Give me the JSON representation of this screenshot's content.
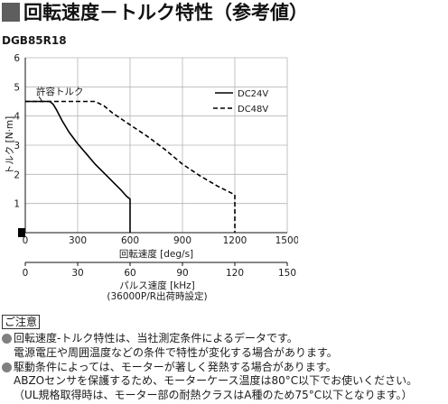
{
  "header": {
    "title": "回転速度－トルク特性（参考値）",
    "accent_color": "#5e5e5e"
  },
  "model": "DGB85R18",
  "chart_data": {
    "type": "line",
    "xlabel": "回転速度 [deg/s]",
    "ylabel": "トルク [N·m]",
    "xlim": [
      0,
      1500
    ],
    "ylim": [
      0,
      6
    ],
    "x_ticks": [
      "0",
      "300",
      "600",
      "900",
      "1200",
      "1500"
    ],
    "y_ticks": [
      "1",
      "2",
      "3",
      "4",
      "5",
      "6"
    ],
    "grid": true,
    "legend_position": "top-right",
    "annotation": "許容トルク",
    "series": [
      {
        "name": "DC24V",
        "dashed": false,
        "points": [
          [
            0,
            4.5
          ],
          [
            140,
            4.5
          ],
          [
            160,
            4.4
          ],
          [
            180,
            4.2
          ],
          [
            210,
            3.85
          ],
          [
            250,
            3.45
          ],
          [
            300,
            3.05
          ],
          [
            350,
            2.7
          ],
          [
            400,
            2.35
          ],
          [
            450,
            2.05
          ],
          [
            500,
            1.75
          ],
          [
            550,
            1.45
          ],
          [
            580,
            1.25
          ],
          [
            600,
            1.15
          ],
          [
            600,
            0
          ]
        ]
      },
      {
        "name": "DC48V",
        "dashed": true,
        "points": [
          [
            0,
            4.5
          ],
          [
            400,
            4.5
          ],
          [
            450,
            4.35
          ],
          [
            500,
            4.1
          ],
          [
            550,
            3.9
          ],
          [
            600,
            3.7
          ],
          [
            700,
            3.3
          ],
          [
            800,
            2.85
          ],
          [
            900,
            2.35
          ],
          [
            1000,
            1.95
          ],
          [
            1100,
            1.6
          ],
          [
            1200,
            1.3
          ],
          [
            1200,
            0
          ]
        ]
      }
    ],
    "secondary_axis": {
      "label": "パルス速度 [kHz]",
      "note": "(36000P/R出荷時設定)",
      "range": [
        0,
        150
      ],
      "ticks": [
        "0",
        "30",
        "60",
        "90",
        "120",
        "150"
      ]
    }
  },
  "notes": {
    "heading": "ご注意",
    "bullet_color": "#808080",
    "items": [
      {
        "bullet": true,
        "text": "回転速度-トルク特性は、当社測定条件によるデータです。"
      },
      {
        "bullet": false,
        "text": "電源電圧や周囲温度などの条件で特性が変化する場合があります。"
      },
      {
        "bullet": true,
        "text": "駆動条件によっては、モーターが著しく発熱する場合があります。"
      },
      {
        "bullet": false,
        "text": "ABZOセンサを保護するため、モーターケース温度は80°C以下でお使いください。"
      },
      {
        "bullet": false,
        "text": "（UL規格取得時は、モーター部の耐熱クラスはA種のため75°C以下となります。）"
      }
    ]
  }
}
